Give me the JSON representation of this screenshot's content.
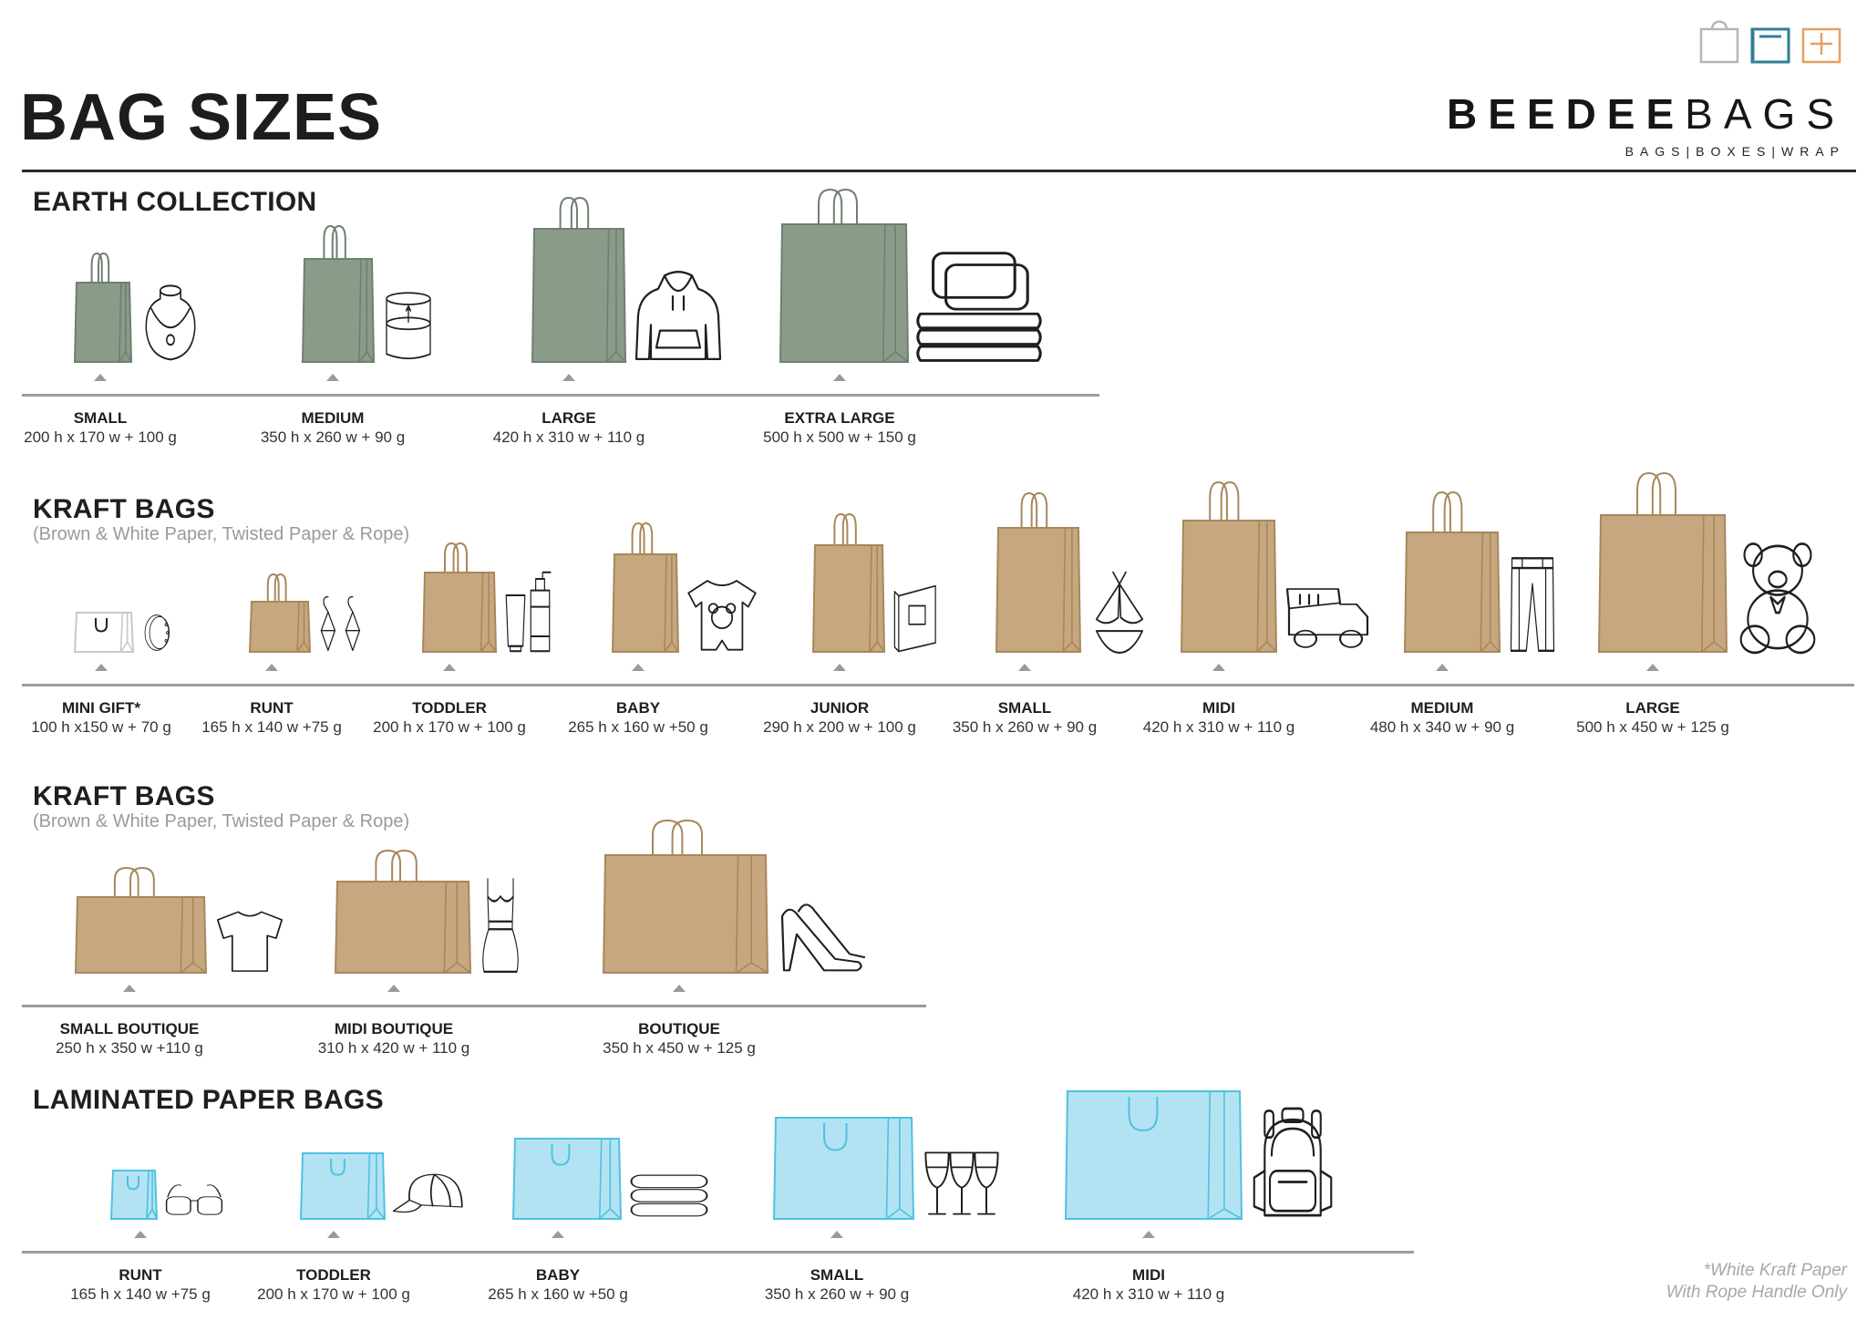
{
  "page": {
    "title": "BAG SIZES",
    "footnote": [
      "*White Kraft Paper",
      "With Rope Handle Only"
    ]
  },
  "brand": {
    "name_bold": "BEEDEE",
    "name_light": "BAGS",
    "tagline": "BAGS|BOXES|WRAP",
    "icons": [
      "bag-outline-icon",
      "box-minus-icon",
      "box-plus-icon"
    ],
    "colors": {
      "gray": "#b5b5b5",
      "teal": "#2e7f97",
      "orange": "#e5a064"
    }
  },
  "colors": {
    "earth_bag": "#8a9b8a",
    "earth_stroke": "#6f7f70",
    "kraft_bag": "#c6a77f",
    "kraft_stroke": "#a8875c",
    "white_bag": "#ffffff",
    "white_stroke": "#c8c8c8",
    "laminated_bag": "#b3e3f3",
    "laminated_stroke": "#4fc1e0",
    "baseline": "#9c9c9c"
  },
  "sections": [
    {
      "title": "EARTH COLLECTION",
      "subtitle": "",
      "items": [
        {
          "name": "SMALL",
          "dims": "200 h x 170 w + 100 g",
          "icon": "necklace-icon"
        },
        {
          "name": "MEDIUM",
          "dims": "350 h x 260 w + 90 g",
          "icon": "candle-icon"
        },
        {
          "name": "LARGE",
          "dims": "420 h x 310 w + 110 g",
          "icon": "hoodie-icon"
        },
        {
          "name": "EXTRA LARGE",
          "dims": "500 h x 500 w + 150 g",
          "icon": "bedding-icon"
        }
      ]
    },
    {
      "title": "KRAFT BAGS",
      "subtitle": "(Brown & White Paper, Twisted Paper & Rope)",
      "items": [
        {
          "name": "MINI GIFT*",
          "dims": "100 h x150 w + 70 g",
          "icon": "bracelet-icon"
        },
        {
          "name": "RUNT",
          "dims": "165 h x 140 w +75 g",
          "icon": "earrings-icon"
        },
        {
          "name": "TODDLER",
          "dims": "200 h x 170 w + 100 g",
          "icon": "cosmetics-icon"
        },
        {
          "name": "BABY",
          "dims": "265 h x 160 w +50 g",
          "icon": "baby-onesie-icon"
        },
        {
          "name": "JUNIOR",
          "dims": "290 h x 200 w + 100 g",
          "icon": "book-icon"
        },
        {
          "name": "SMALL",
          "dims": "350 h x 260 w + 90 g",
          "icon": "bikini-icon"
        },
        {
          "name": "MIDI",
          "dims": "420 h x 310 w + 110 g",
          "icon": "toy-truck-icon"
        },
        {
          "name": "MEDIUM",
          "dims": "480 h x 340 w + 90 g",
          "icon": "trousers-icon"
        },
        {
          "name": "LARGE",
          "dims": "500 h x 450 w + 125 g",
          "icon": "teddy-bear-icon"
        }
      ]
    },
    {
      "title": "KRAFT BAGS",
      "subtitle": "(Brown & White Paper, Twisted Paper & Rope)",
      "items": [
        {
          "name": "SMALL BOUTIQUE",
          "dims": "250 h x 350 w +110 g",
          "icon": "tshirt-icon"
        },
        {
          "name": "MIDI BOUTIQUE",
          "dims": "310 h x 420 w + 110 g",
          "icon": "dress-icon"
        },
        {
          "name": "BOUTIQUE",
          "dims": "350 h x 450 w + 125 g",
          "icon": "high-heels-icon"
        }
      ]
    },
    {
      "title": "LAMINATED PAPER BAGS",
      "subtitle": "",
      "items": [
        {
          "name": "RUNT",
          "dims": "165 h x 140 w +75 g",
          "icon": "sunglasses-icon"
        },
        {
          "name": "TODDLER",
          "dims": "200 h x 170 w + 100 g",
          "icon": "cap-icon"
        },
        {
          "name": "BABY",
          "dims": "265 h x 160 w +50 g",
          "icon": "folded-towels-icon"
        },
        {
          "name": "SMALL",
          "dims": "350 h x 260 w + 90 g",
          "icon": "wine-glasses-icon"
        },
        {
          "name": "MIDI",
          "dims": "420 h x 310 w + 110 g",
          "icon": "backpack-icon"
        }
      ]
    }
  ]
}
